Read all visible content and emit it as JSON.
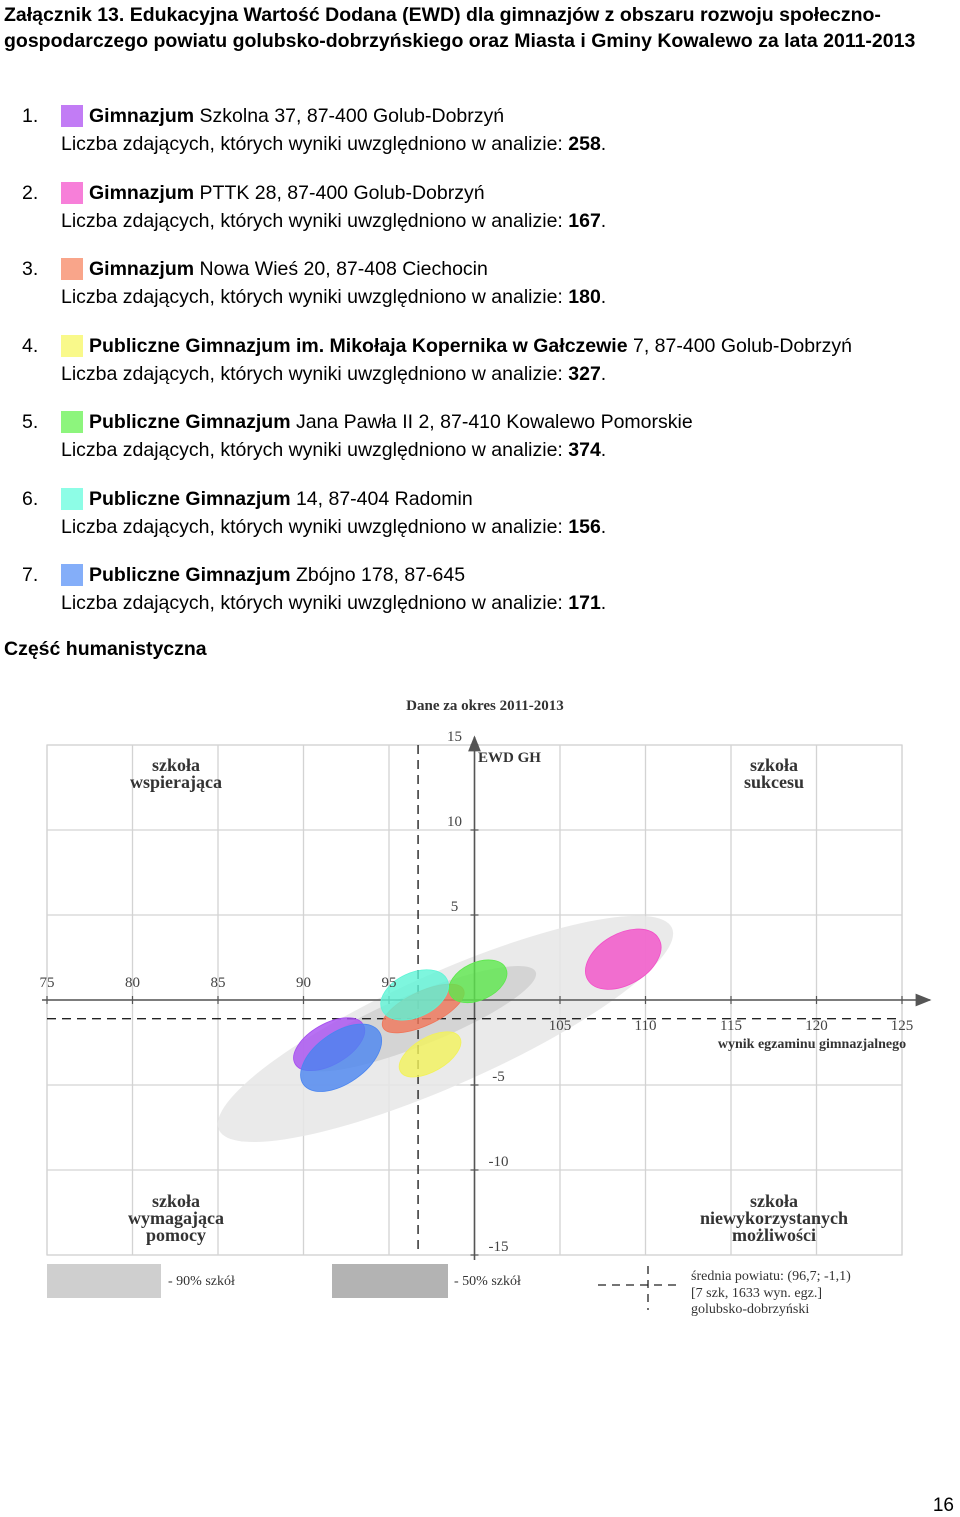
{
  "document_title": "Załącznik 13. Edukacyjna Wartość Dodana (EWD) dla gimnazjów z obszaru rozwoju społeczno-gospodarczego powiatu golubsko-dobrzyńskiego oraz Miasta i Gminy Kowalewo za lata 2011-2013",
  "count_label": "Liczba zdających, których wyniki uwzględniono w analizie:",
  "schools": [
    {
      "num": "1.",
      "name_bold": "Gimnazjum",
      "address": " Szkolna 37, 87-400 Golub-Dobrzyń",
      "count": "258",
      "color": "#c27cf5"
    },
    {
      "num": "2.",
      "name_bold": "Gimnazjum",
      "address": " PTTK 28, 87-400 Golub-Dobrzyń",
      "count": "167",
      "color": "#f77fd9"
    },
    {
      "num": "3.",
      "name_bold": "Gimnazjum",
      "address": " Nowa Wieś 20, 87-408 Ciechocin",
      "count": "180",
      "color": "#f9a58a"
    },
    {
      "num": "4.",
      "name_bold": "Publiczne Gimnazjum im. Mikołaja Kopernika w Gałczewie",
      "address": " 7, 87-400 Golub-Dobrzyń",
      "count": "327",
      "color": "#f9f98a"
    },
    {
      "num": "5.",
      "name_bold": "Publiczne Gimnazjum",
      "address": " Jana Pawła II 2, 87-410 Kowalewo Pomorskie",
      "count": "374",
      "color": "#8df57d"
    },
    {
      "num": "6.",
      "name_bold": "Publiczne Gimnazjum",
      "address": " 14, 87-404 Radomin",
      "count": "156",
      "color": "#8dfde6"
    },
    {
      "num": "7.",
      "name_bold": "Publiczne Gimnazjum",
      "address": " Zbójno 178, 87-645",
      "count": "171",
      "color": "#84aef9"
    }
  ],
  "section_heading": "Część humanistyczna",
  "page_number": "16",
  "chart_data": {
    "type": "scatter",
    "title": "Dane za okres 2011-2013",
    "ylabel": "EWD GH",
    "xlabel": "wynik egzaminu gimnazjalnego",
    "x_ticks": [
      75,
      80,
      85,
      90,
      95,
      105,
      110,
      115,
      120,
      125
    ],
    "y_ticks": [
      15,
      10,
      5,
      -5,
      -10,
      -15
    ],
    "xlim": [
      75,
      125
    ],
    "ylim": [
      -15,
      15
    ],
    "grid": true,
    "quadrant_labels": {
      "top_left": "szkoła wspierająca",
      "top_right": "szkoła sukcesu",
      "bottom_left": "szkoła wymagająca pomocy",
      "bottom_right": "szkoła niewykorzystanych możliwości"
    },
    "legend": {
      "band90": "- 90% szkół",
      "band50": "- 50% szkół",
      "mean_line1": "średnia powiatu: (96,7; -1,1)",
      "mean_line2": "[7 szk, 1633 wyn. egz.]",
      "mean_line3": "golubsko-dobrzyński"
    },
    "county_mean": {
      "x": 96.7,
      "y": -1.1
    },
    "series": [
      {
        "school": 1,
        "color": "#a64df0",
        "x": 91.5,
        "y": -2.6,
        "rx": 2.3,
        "ry": 1.2,
        "angle": 30
      },
      {
        "school": 2,
        "color": "#f24fc8",
        "x": 108.7,
        "y": 2.4,
        "rx": 2.4,
        "ry": 1.5,
        "angle": 30
      },
      {
        "school": 3,
        "color": "#f07559",
        "x": 97.0,
        "y": -0.5,
        "rx": 2.6,
        "ry": 1.0,
        "angle": 25
      },
      {
        "school": 4,
        "color": "#f2f25a",
        "x": 97.4,
        "y": -3.2,
        "rx": 2.0,
        "ry": 1.0,
        "angle": 30
      },
      {
        "school": 5,
        "color": "#5ce84c",
        "x": 100.2,
        "y": 1.1,
        "rx": 1.8,
        "ry": 1.1,
        "angle": 25
      },
      {
        "school": 6,
        "color": "#5ef4d6",
        "x": 96.5,
        "y": 0.3,
        "rx": 2.1,
        "ry": 1.3,
        "angle": 25
      },
      {
        "school": 7,
        "color": "#4a85f0",
        "x": 92.2,
        "y": -3.4,
        "rx": 2.7,
        "ry": 1.5,
        "angle": 35
      }
    ]
  }
}
